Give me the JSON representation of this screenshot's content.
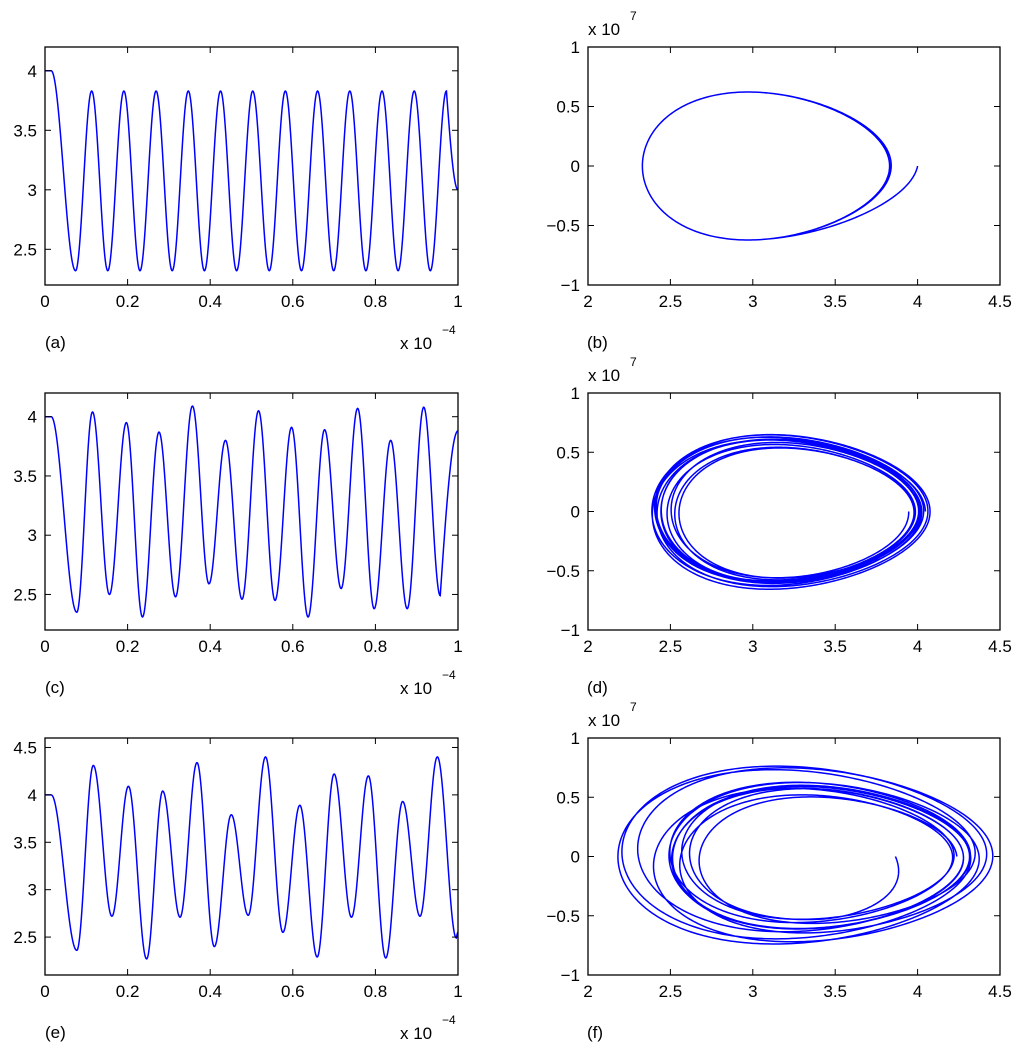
{
  "colors": {
    "line": "#0000ff",
    "axis": "#000000",
    "background": "#ffffff"
  },
  "chart_data": [
    {
      "id": "a",
      "panel_label": "(a)",
      "type": "line",
      "xlim": [
        0,
        1
      ],
      "ylim": [
        2.2,
        4.2
      ],
      "xticks": [
        0,
        0.2,
        0.4,
        0.6,
        0.8,
        1
      ],
      "xtick_labels": [
        "0",
        "0.2",
        "0.4",
        "0.6",
        "0.8",
        "1"
      ],
      "yticks": [
        2.5,
        3,
        3.5,
        4
      ],
      "ytick_labels": [
        "2.5",
        "3",
        "3.5",
        "4"
      ],
      "x_multiplier": {
        "base": "x 10",
        "exponent": "−4"
      },
      "x_values_unit": "x 10^-4",
      "series": [
        {
          "t_start": 0.0,
          "t_end": 1.0,
          "initial": 4.0,
          "flat_until": 0.015,
          "maxima": [
            [
              0.113,
              3.83
            ],
            [
              0.191,
              3.83
            ],
            [
              0.269,
              3.83
            ],
            [
              0.347,
              3.83
            ],
            [
              0.425,
              3.83
            ],
            [
              0.503,
              3.83
            ],
            [
              0.582,
              3.83
            ],
            [
              0.66,
              3.83
            ],
            [
              0.738,
              3.83
            ],
            [
              0.816,
              3.83
            ],
            [
              0.894,
              3.83
            ],
            [
              0.972,
              3.83
            ]
          ],
          "minima": [
            [
              0.074,
              2.32
            ],
            [
              0.152,
              2.32
            ],
            [
              0.23,
              2.32
            ],
            [
              0.308,
              2.32
            ],
            [
              0.386,
              2.32
            ],
            [
              0.464,
              2.32
            ],
            [
              0.543,
              2.32
            ],
            [
              0.621,
              2.32
            ],
            [
              0.699,
              2.32
            ],
            [
              0.777,
              2.32
            ],
            [
              0.855,
              2.32
            ],
            [
              0.933,
              2.32
            ]
          ],
          "final": [
            1.0,
            3.0
          ]
        }
      ]
    },
    {
      "id": "b",
      "panel_label": "(b)",
      "type": "line",
      "xlim": [
        2,
        4.5
      ],
      "ylim": [
        -1,
        1
      ],
      "xticks": [
        2,
        2.5,
        3,
        3.5,
        4,
        4.5
      ],
      "xtick_labels": [
        "2",
        "2.5",
        "3",
        "3.5",
        "4",
        "4.5"
      ],
      "yticks": [
        -1,
        -0.5,
        0,
        0.5,
        1
      ],
      "ytick_labels": [
        "−1",
        "−0.5",
        "0",
        "0.5",
        "1"
      ],
      "y_multiplier": {
        "base": "x 10",
        "exponent": "7"
      },
      "y_values_unit": "x 10^7",
      "series": [
        {
          "start": [
            4.0,
            0.0
          ],
          "rmin": 2.33,
          "rmax": 3.83,
          "vmax": 0.615,
          "turns": 12,
          "mod_amp": 0.0,
          "mod_period": 1,
          "mod2_amp": 0.0
        }
      ]
    },
    {
      "id": "c",
      "panel_label": "(c)",
      "type": "line",
      "xlim": [
        0,
        1
      ],
      "ylim": [
        2.2,
        4.2
      ],
      "xticks": [
        0,
        0.2,
        0.4,
        0.6,
        0.8,
        1
      ],
      "xtick_labels": [
        "0",
        "0.2",
        "0.4",
        "0.6",
        "0.8",
        "1"
      ],
      "yticks": [
        2.5,
        3,
        3.5,
        4
      ],
      "ytick_labels": [
        "2.5",
        "3",
        "3.5",
        "4"
      ],
      "x_multiplier": {
        "base": "x 10",
        "exponent": "−4"
      },
      "x_values_unit": "x 10^-4",
      "series": [
        {
          "t_start": 0.0,
          "t_end": 1.0,
          "initial": 4.0,
          "flat_until": 0.015,
          "maxima": [
            [
              0.115,
              4.04
            ],
            [
              0.197,
              3.95
            ],
            [
              0.276,
              3.87
            ],
            [
              0.357,
              4.09
            ],
            [
              0.437,
              3.8
            ],
            [
              0.517,
              4.05
            ],
            [
              0.597,
              3.91
            ],
            [
              0.677,
              3.89
            ],
            [
              0.757,
              4.07
            ],
            [
              0.837,
              3.8
            ],
            [
              0.917,
              4.08
            ]
          ],
          "minima": [
            [
              0.077,
              2.35
            ],
            [
              0.156,
              2.5
            ],
            [
              0.236,
              2.31
            ],
            [
              0.316,
              2.48
            ],
            [
              0.397,
              2.59
            ],
            [
              0.477,
              2.46
            ],
            [
              0.557,
              2.45
            ],
            [
              0.637,
              2.31
            ],
            [
              0.717,
              2.55
            ],
            [
              0.797,
              2.38
            ],
            [
              0.877,
              2.38
            ],
            [
              0.957,
              2.49
            ]
          ],
          "final": [
            1.0,
            3.88
          ]
        }
      ]
    },
    {
      "id": "d",
      "panel_label": "(d)",
      "type": "line",
      "xlim": [
        2,
        4.5
      ],
      "ylim": [
        -1,
        1
      ],
      "xticks": [
        2,
        2.5,
        3,
        3.5,
        4,
        4.5
      ],
      "xtick_labels": [
        "2",
        "2.5",
        "3",
        "3.5",
        "4",
        "4.5"
      ],
      "yticks": [
        -1,
        -0.5,
        0,
        0.5,
        1
      ],
      "ytick_labels": [
        "−1",
        "−0.5",
        "0",
        "0.5",
        "1"
      ],
      "y_multiplier": {
        "base": "x 10",
        "exponent": "7"
      },
      "y_values_unit": "x 10^7",
      "series": [
        {
          "start": [
            4.0,
            0.0
          ],
          "rmin": 2.38,
          "rmax": 4.05,
          "vmax": 0.63,
          "turns": 12,
          "mod_amp": 0.11,
          "mod_period": 4.3,
          "mod2_amp": 0.05
        }
      ]
    },
    {
      "id": "e",
      "panel_label": "(e)",
      "type": "line",
      "xlim": [
        0,
        1
      ],
      "ylim": [
        2.1,
        4.6
      ],
      "xticks": [
        0,
        0.2,
        0.4,
        0.6,
        0.8,
        1
      ],
      "xtick_labels": [
        "0",
        "0.2",
        "0.4",
        "0.6",
        "0.8",
        "1"
      ],
      "yticks": [
        2.5,
        3,
        3.5,
        4,
        4.5
      ],
      "ytick_labels": [
        "2.5",
        "3",
        "3.5",
        "4",
        "4.5"
      ],
      "x_multiplier": {
        "base": "x 10",
        "exponent": "−4"
      },
      "x_values_unit": "x 10^-4",
      "series": [
        {
          "t_start": 0.0,
          "t_end": 1.0,
          "initial": 4.0,
          "flat_until": 0.015,
          "maxima": [
            [
              0.117,
              4.31
            ],
            [
              0.202,
              4.09
            ],
            [
              0.285,
              4.04
            ],
            [
              0.368,
              4.34
            ],
            [
              0.451,
              3.79
            ],
            [
              0.534,
              4.4
            ],
            [
              0.617,
              3.89
            ],
            [
              0.7,
              4.22
            ],
            [
              0.783,
              4.2
            ],
            [
              0.866,
              3.93
            ],
            [
              0.95,
              4.4
            ]
          ],
          "minima": [
            [
              0.077,
              2.36
            ],
            [
              0.162,
              2.72
            ],
            [
              0.246,
              2.27
            ],
            [
              0.327,
              2.71
            ],
            [
              0.41,
              2.4
            ],
            [
              0.492,
              2.73
            ],
            [
              0.576,
              2.55
            ],
            [
              0.659,
              2.29
            ],
            [
              0.742,
              2.71
            ],
            [
              0.825,
              2.28
            ],
            [
              0.908,
              2.72
            ],
            [
              0.996,
              2.49
            ]
          ],
          "final": [
            1.0,
            2.55
          ]
        }
      ]
    },
    {
      "id": "f",
      "panel_label": "(f)",
      "type": "line",
      "xlim": [
        2,
        4.5
      ],
      "ylim": [
        -1,
        1
      ],
      "xticks": [
        2,
        2.5,
        3,
        3.5,
        4,
        4.5
      ],
      "xtick_labels": [
        "2",
        "2.5",
        "3",
        "3.5",
        "4",
        "4.5"
      ],
      "yticks": [
        -1,
        -0.5,
        0,
        0.5,
        1
      ],
      "ytick_labels": [
        "−1",
        "−0.5",
        "0",
        "0.5",
        "1"
      ],
      "y_multiplier": {
        "base": "x 10",
        "exponent": "7"
      },
      "y_values_unit": "x 10^7",
      "series": [
        {
          "start": [
            4.0,
            0.0
          ],
          "rmin": 2.28,
          "rmax": 4.4,
          "vmax": 0.7,
          "turns": 12,
          "mod_amp": 0.23,
          "mod_period": 3.7,
          "mod2_amp": 0.09
        }
      ]
    }
  ]
}
